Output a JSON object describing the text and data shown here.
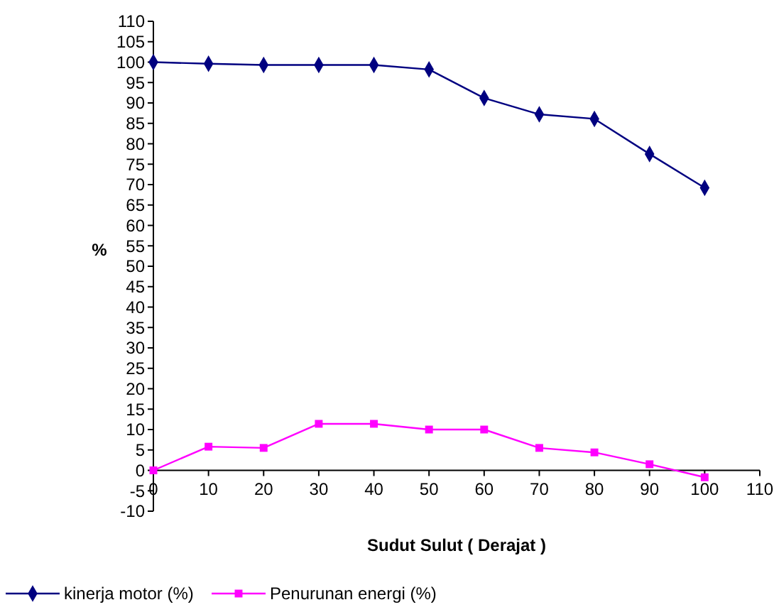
{
  "chart_data": {
    "type": "line",
    "xlabel": "Sudut Sulut ( Derajat )",
    "ylabel": "%",
    "x": [
      0,
      10,
      20,
      30,
      40,
      50,
      60,
      70,
      80,
      90,
      100
    ],
    "series": [
      {
        "name": "kinerja motor (%)",
        "color": "#000080",
        "marker": "diamond",
        "values": [
          100,
          99.6,
          99.3,
          99.3,
          99.3,
          98.2,
          91.2,
          87.2,
          86.1,
          77.5,
          69.2
        ]
      },
      {
        "name": "Penurunan energi (%)",
        "color": "#ff00ff",
        "marker": "square",
        "values": [
          0,
          5.8,
          5.5,
          11.4,
          11.4,
          10,
          10,
          5.5,
          4.4,
          1.5,
          -1.7
        ]
      }
    ],
    "xlim": [
      0,
      110
    ],
    "xticks": [
      0,
      10,
      20,
      30,
      40,
      50,
      60,
      70,
      80,
      90,
      100,
      110
    ],
    "ylim": [
      -10,
      110
    ],
    "yticks": [
      -10,
      -5,
      0,
      5,
      10,
      15,
      20,
      25,
      30,
      35,
      40,
      45,
      50,
      55,
      60,
      65,
      70,
      75,
      80,
      85,
      90,
      95,
      100,
      105,
      110
    ],
    "grid": false,
    "legend": "bottom left"
  }
}
